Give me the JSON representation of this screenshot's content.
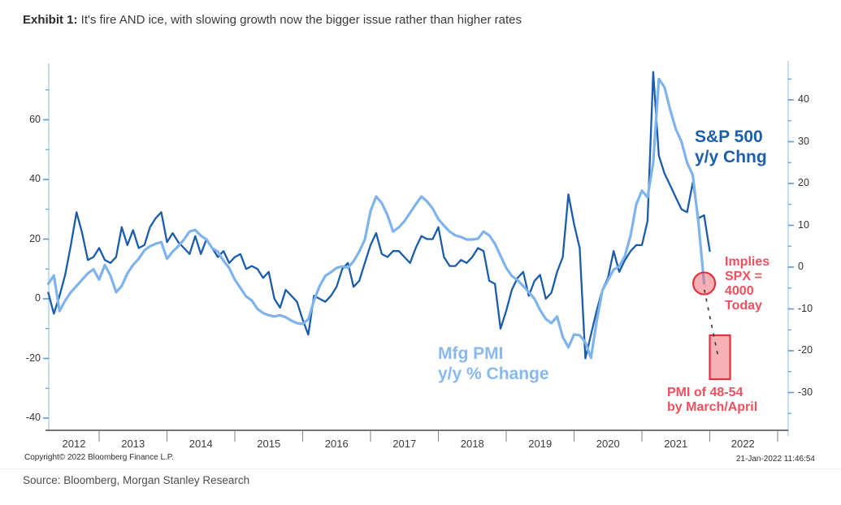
{
  "header": {
    "exhibit_label": "Exhibit 1:",
    "title_rest": " It's fire AND ice, with slowing growth now the bigger issue rather than higher rates"
  },
  "footer": {
    "copyright": "Copyright© 2022 Bloomberg Finance L.P.",
    "timestamp": "21-Jan-2022 11:46:54",
    "source": "Source: Bloomberg, Morgan Stanley Research"
  },
  "colors": {
    "sp500_line": "#1b5cab",
    "pmi_line": "#7fb3ec",
    "sp500_label": "#1c5fae",
    "pmi_label": "#8ab9ef",
    "annotation_red": "#f04f5e",
    "red_stroke": "#e4303e",
    "red_fill": "rgba(240,100,110,0.5)",
    "axis_blue": "#a5cbf2",
    "tick_blue": "#5e9bd6",
    "x_axis": "#4a4a4a",
    "x_tick": "#8a8a8a",
    "dash": "#3d3d3d"
  },
  "chart_data": {
    "type": "line",
    "title": "It's fire AND ice, with slowing growth now the bigger issue rather than higher rates",
    "x_axis": {
      "year_labels": [
        2012,
        2013,
        2014,
        2015,
        2016,
        2017,
        2018,
        2019,
        2020,
        2021,
        2022
      ],
      "year_boundaries": [
        2013,
        2014,
        2015,
        2016,
        2017,
        2018,
        2019,
        2020,
        2021,
        2022,
        2023
      ]
    },
    "left_axis": {
      "labeled_ticks": [
        -40,
        -20,
        0,
        20,
        40,
        60
      ],
      "minor_ticks_step": 10,
      "minor_min": -40,
      "minor_max": 70,
      "range": [
        -44,
        79
      ]
    },
    "right_axis": {
      "labeled_ticks": [
        -30,
        -20,
        -10,
        0,
        10,
        20,
        30,
        40
      ],
      "minor_ticks_step": 5,
      "minor_min": -35,
      "minor_max": 45,
      "range": [
        -39,
        48.7
      ]
    },
    "series": [
      {
        "name": "S&P 500 y/y Chng",
        "axis": "left",
        "color": "#1b5cab",
        "width": 2.3,
        "start_year": 2012.25,
        "step_years": 0.08333,
        "values": [
          2,
          -5,
          1,
          8,
          18,
          29,
          22,
          13,
          14,
          17,
          13,
          12,
          14,
          24,
          18,
          23,
          17,
          18,
          24,
          27,
          29,
          19,
          22,
          19,
          17,
          15,
          21,
          15,
          20,
          17,
          14,
          16,
          12,
          14,
          15,
          10,
          11,
          10,
          7,
          9,
          0,
          -3,
          3,
          1,
          -1,
          -7,
          -12,
          1,
          0,
          -1,
          1,
          4,
          10,
          12,
          4,
          6,
          12,
          18,
          22,
          15,
          14,
          16,
          16,
          14,
          12,
          17,
          21,
          20,
          20,
          24,
          14,
          11,
          11,
          13,
          12,
          14,
          17,
          16,
          6,
          5,
          -10,
          -4,
          3,
          7,
          9,
          1,
          6,
          8,
          0,
          2,
          9,
          14,
          35,
          25,
          17,
          -20,
          -12,
          -4,
          3,
          7,
          16,
          9,
          13,
          16,
          18,
          18,
          26,
          76,
          48,
          42,
          38,
          34,
          30,
          29,
          39,
          27,
          28,
          16
        ]
      },
      {
        "name": "Mfg PMI y/y % Change",
        "axis": "right",
        "color": "#7fb3ec",
        "width": 3.2,
        "start_year": 2012.25,
        "step_years": 0.08333,
        "values": [
          -4,
          -2,
          -10.5,
          -8,
          -6,
          -4.5,
          -3,
          -1.5,
          -0.5,
          -3,
          0.5,
          -2,
          -6,
          -4.5,
          -1.5,
          0.5,
          2,
          4,
          5,
          5.6,
          6,
          2,
          3.7,
          5,
          6.6,
          8.5,
          8.9,
          7.5,
          6.6,
          4.5,
          3.7,
          1.5,
          -0.2,
          -3,
          -5,
          -7,
          -8,
          -10,
          -11,
          -11.5,
          -11.8,
          -11.5,
          -12,
          -12.8,
          -13.4,
          -13.6,
          -12.5,
          -8,
          -4.5,
          -2.1,
          -1.2,
          -0.2,
          0.2,
          -0.2,
          1.4,
          3.7,
          6.6,
          13.4,
          16.9,
          15.3,
          12.4,
          8.5,
          9.5,
          11,
          13,
          15,
          16.9,
          15.7,
          14,
          11.5,
          9.9,
          8.5,
          7.6,
          7.2,
          6.6,
          6.6,
          6.8,
          8.5,
          7.6,
          5.6,
          2.7,
          -0.2,
          -2.1,
          -3.1,
          -4.5,
          -6,
          -7.6,
          -10.3,
          -12.4,
          -13.4,
          -11.8,
          -16.7,
          -19.2,
          -16.1,
          -16.3,
          -18,
          -21.7,
          -13,
          -5.6,
          -3.1,
          -0.6,
          0.2,
          2.7,
          7.6,
          15,
          18.3,
          16.7,
          25,
          45,
          43,
          37.6,
          33,
          30,
          25,
          22,
          10.5,
          -3.9
        ]
      }
    ],
    "annotations": {
      "sp500_label": "S&P 500\ny/y Chng",
      "mfg_label": "Mfg PMI\ny/y % Change",
      "implies_label": "Implies\nSPX =\n4000\nToday",
      "pmi_target_label": "PMI of 48-54\nby March/April",
      "circle": {
        "axis": "right",
        "year": 2021.917,
        "value": -3.9,
        "radius_px": 13.5
      },
      "dash_line": {
        "axis": "right",
        "from": {
          "year": 2021.92,
          "value": -5.4
        },
        "to": {
          "year": 2022.13,
          "value": -22.0
        }
      },
      "box": {
        "axis": "right",
        "year_start": 2022.0,
        "year_end": 2022.3,
        "value_top": -16.3,
        "value_bottom": -26.8
      }
    }
  }
}
